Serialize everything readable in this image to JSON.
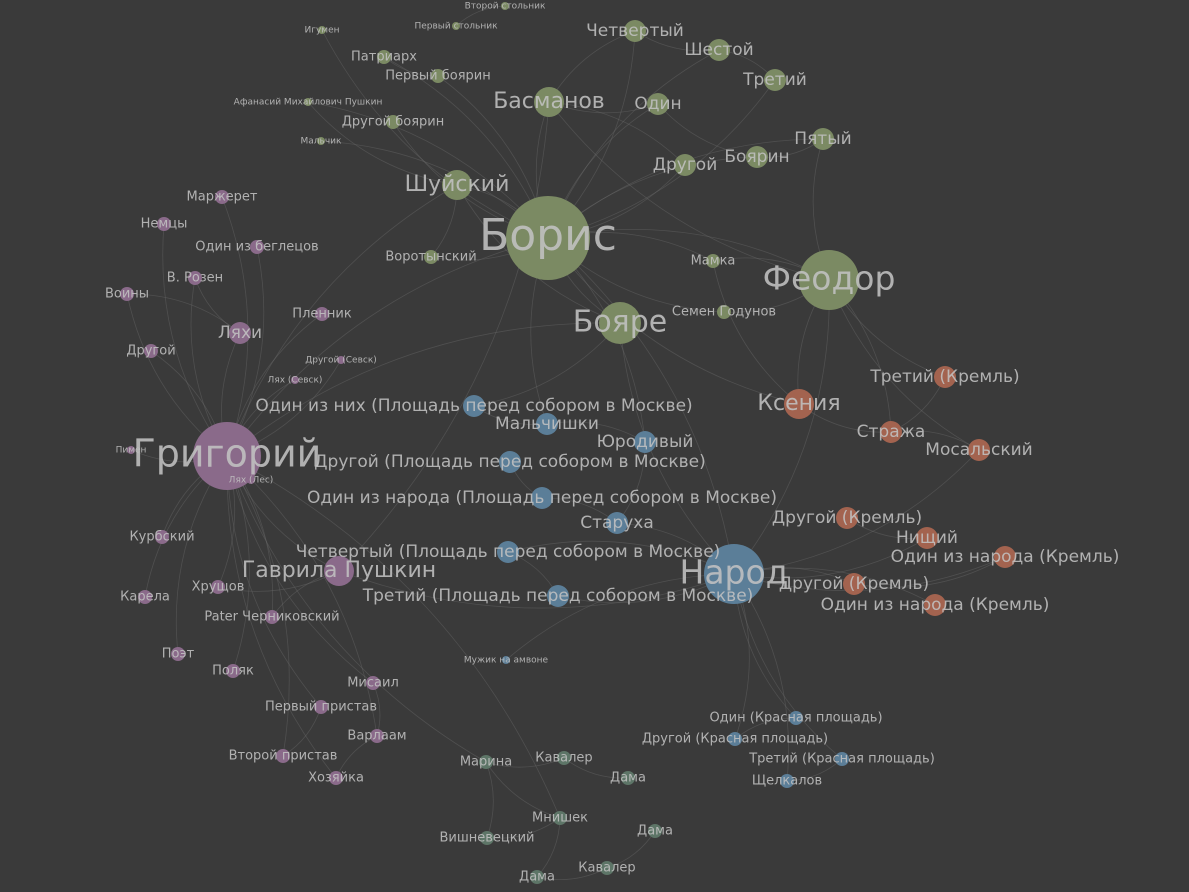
{
  "colors": {
    "background": "#3a3a3a",
    "label": "#c2c2c2",
    "edge": "#6a6a6a",
    "groups": {
      "boris": "#7b8a63",
      "grigory": "#8a6a8a",
      "narod": "#5b7e98",
      "kremlin": "#a3634f",
      "marina": "#5d7567"
    }
  },
  "nodes": [
    {
      "id": "boris",
      "label": "Борис",
      "group": "boris",
      "weight": 10
    },
    {
      "id": "grigory",
      "label": "Григорий",
      "group": "grigory",
      "weight": 9
    },
    {
      "id": "feodor",
      "label": "Феодор",
      "group": "boris",
      "weight": 7
    },
    {
      "id": "narod",
      "label": "Народ",
      "group": "narod",
      "weight": 7
    },
    {
      "id": "boyare",
      "label": "Бояре",
      "group": "boris",
      "weight": 5
    },
    {
      "id": "basmanov",
      "label": "Басманов",
      "group": "boris",
      "weight": 4
    },
    {
      "id": "shuisky",
      "label": "Шуйский",
      "group": "boris",
      "weight": 4
    },
    {
      "id": "ksenia",
      "label": "Ксения",
      "group": "kremlin",
      "weight": 4
    },
    {
      "id": "gavrila",
      "label": "Гаврила Пушкин",
      "group": "grigory",
      "weight": 4
    },
    {
      "id": "lyakhi",
      "label": "Ляхи",
      "group": "grigory",
      "weight": 3
    },
    {
      "id": "chetverty",
      "label": "Четвертый",
      "group": "boris",
      "weight": 3
    },
    {
      "id": "shestoy",
      "label": "Шестой",
      "group": "boris",
      "weight": 3
    },
    {
      "id": "trety",
      "label": "Третий",
      "group": "boris",
      "weight": 3
    },
    {
      "id": "odin",
      "label": "Один",
      "group": "boris",
      "weight": 3
    },
    {
      "id": "pyaty",
      "label": "Пятый",
      "group": "boris",
      "weight": 3
    },
    {
      "id": "boyarin",
      "label": "Боярин",
      "group": "boris",
      "weight": 3
    },
    {
      "id": "drugoy-top",
      "label": "Другой",
      "group": "boris",
      "weight": 3
    },
    {
      "id": "patriarkh",
      "label": "Патриарх",
      "group": "boris",
      "weight": 2
    },
    {
      "id": "perv-boyarin",
      "label": "Первый боярин",
      "group": "boris",
      "weight": 2
    },
    {
      "id": "drug-boyarin",
      "label": "Другой боярин",
      "group": "boris",
      "weight": 2
    },
    {
      "id": "afanasy",
      "label": "Афанасий Михайлович Пушкин",
      "group": "boris",
      "weight": 1
    },
    {
      "id": "malchik",
      "label": "Мальчик",
      "group": "boris",
      "weight": 1
    },
    {
      "id": "igumen",
      "label": "Игумен",
      "group": "boris",
      "weight": 1
    },
    {
      "id": "perv-stolnik",
      "label": "Первый стольник",
      "group": "boris",
      "weight": 1
    },
    {
      "id": "vtor-stolnik",
      "label": "Второй стольник",
      "group": "boris",
      "weight": 1
    },
    {
      "id": "vorotynsky",
      "label": "Воротынский",
      "group": "boris",
      "weight": 2
    },
    {
      "id": "mamka",
      "label": "Мамка",
      "group": "boris",
      "weight": 2
    },
    {
      "id": "semen",
      "label": "Семен Годунов",
      "group": "boris",
      "weight": 2
    },
    {
      "id": "markeret",
      "label": "Маржерет",
      "group": "grigory",
      "weight": 2
    },
    {
      "id": "nemtsy",
      "label": "Немцы",
      "group": "grigory",
      "weight": 2
    },
    {
      "id": "odin-beglets",
      "label": "Один из беглецов",
      "group": "grigory",
      "weight": 2
    },
    {
      "id": "rozen",
      "label": "В. Розен",
      "group": "grigory",
      "weight": 2
    },
    {
      "id": "voiny",
      "label": "Воины",
      "group": "grigory",
      "weight": 2
    },
    {
      "id": "drugoy-left",
      "label": "Другой",
      "group": "grigory",
      "weight": 2
    },
    {
      "id": "plennik",
      "label": "Пленник",
      "group": "grigory",
      "weight": 2
    },
    {
      "id": "drugoy-sevsk",
      "label": "Другой (Севск)",
      "group": "grigory",
      "weight": 1
    },
    {
      "id": "lyakh-sevsk",
      "label": "Лях (Севск)",
      "group": "grigory",
      "weight": 1
    },
    {
      "id": "pimen",
      "label": "Пимен",
      "group": "grigory",
      "weight": 1
    },
    {
      "id": "lyakh-les",
      "label": "Лях (Лес)",
      "group": "grigory",
      "weight": 1
    },
    {
      "id": "kurbsky",
      "label": "Курбский",
      "group": "grigory",
      "weight": 2
    },
    {
      "id": "khrushchov",
      "label": "Хрущов",
      "group": "grigory",
      "weight": 2
    },
    {
      "id": "karela",
      "label": "Карела",
      "group": "grigory",
      "weight": 2
    },
    {
      "id": "pater",
      "label": "Pater Черниковский",
      "group": "grigory",
      "weight": 2
    },
    {
      "id": "poet",
      "label": "Поэт",
      "group": "grigory",
      "weight": 2
    },
    {
      "id": "polyak",
      "label": "Поляк",
      "group": "grigory",
      "weight": 2
    },
    {
      "id": "misail",
      "label": "Мисаил",
      "group": "grigory",
      "weight": 2
    },
    {
      "id": "perv-pristav",
      "label": "Первый пристав",
      "group": "grigory",
      "weight": 2
    },
    {
      "id": "varlaam",
      "label": "Варлаам",
      "group": "grigory",
      "weight": 2
    },
    {
      "id": "vtor-pristav",
      "label": "Второй пристав",
      "group": "grigory",
      "weight": 2
    },
    {
      "id": "khozyaika",
      "label": "Хозяйка",
      "group": "grigory",
      "weight": 2
    },
    {
      "id": "odin-nikh",
      "label": "Один из них (Площадь перед собором в Москве)",
      "group": "narod",
      "weight": 3
    },
    {
      "id": "malchishki",
      "label": "Мальчишки",
      "group": "narod",
      "weight": 3
    },
    {
      "id": "yurodivy",
      "label": "Юродивый",
      "group": "narod",
      "weight": 3
    },
    {
      "id": "drugoy-ploshchad",
      "label": "Другой (Площадь перед собором в Москве)",
      "group": "narod",
      "weight": 3
    },
    {
      "id": "odin-naroda-ploshchad",
      "label": "Один из народа (Площадь перед собором в Москве)",
      "group": "narod",
      "weight": 3
    },
    {
      "id": "starukha",
      "label": "Старуха",
      "group": "narod",
      "weight": 3
    },
    {
      "id": "chetverty-ploshchad",
      "label": "Четвертый (Площадь перед собором в Москве)",
      "group": "narod",
      "weight": 3
    },
    {
      "id": "trety-ploshchad",
      "label": "Третий (Площадь перед собором в Москве)",
      "group": "narod",
      "weight": 3
    },
    {
      "id": "muzhik",
      "label": "Мужик на амвоне",
      "group": "narod",
      "weight": 1
    },
    {
      "id": "odin-krasnaya",
      "label": "Один (Красная площадь)",
      "group": "narod",
      "weight": 2
    },
    {
      "id": "drugoy-krasnaya",
      "label": "Другой (Красная площадь)",
      "group": "narod",
      "weight": 2
    },
    {
      "id": "trety-krasnaya",
      "label": "Третий (Красная площадь)",
      "group": "narod",
      "weight": 2
    },
    {
      "id": "shchelkalov",
      "label": "Щелкалов",
      "group": "narod",
      "weight": 2
    },
    {
      "id": "trety-kreml",
      "label": "Третий (Кремль)",
      "group": "kremlin",
      "weight": 3
    },
    {
      "id": "strazha",
      "label": "Стража",
      "group": "kremlin",
      "weight": 3
    },
    {
      "id": "mosalsky",
      "label": "Мосальский",
      "group": "kremlin",
      "weight": 3
    },
    {
      "id": "drugoy-kreml-1",
      "label": "Другой (Кремль)",
      "group": "kremlin",
      "weight": 3
    },
    {
      "id": "nishchy",
      "label": "Нищий",
      "group": "kremlin",
      "weight": 3
    },
    {
      "id": "odin-naroda-kreml-1",
      "label": "Один из народа (Кремль)",
      "group": "kremlin",
      "weight": 3
    },
    {
      "id": "drugoy-kreml-2",
      "label": "Другой (Кремль)",
      "group": "kremlin",
      "weight": 3
    },
    {
      "id": "odin-naroda-kreml-2",
      "label": "Один из народа (Кремль)",
      "group": "kremlin",
      "weight": 3
    },
    {
      "id": "marina",
      "label": "Марина",
      "group": "marina",
      "weight": 2
    },
    {
      "id": "kavaler-1",
      "label": "Кавалер",
      "group": "marina",
      "weight": 2
    },
    {
      "id": "dama-1",
      "label": "Дама",
      "group": "marina",
      "weight": 2
    },
    {
      "id": "mnishek",
      "label": "Мнишек",
      "group": "marina",
      "weight": 2
    },
    {
      "id": "dama-2",
      "label": "Дама",
      "group": "marina",
      "weight": 2
    },
    {
      "id": "vishnevetsky",
      "label": "Вишневецкий",
      "group": "marina",
      "weight": 2
    },
    {
      "id": "dama-3",
      "label": "Дама",
      "group": "marina",
      "weight": 2
    },
    {
      "id": "kavaler-2",
      "label": "Кавалер",
      "group": "marina",
      "weight": 2
    }
  ],
  "edges": [
    [
      "boris",
      "shuisky"
    ],
    [
      "boris",
      "basmanov"
    ],
    [
      "boris",
      "boyare"
    ],
    [
      "boris",
      "feodor"
    ],
    [
      "boris",
      "patriarkh"
    ],
    [
      "boris",
      "vorotynsky"
    ],
    [
      "boris",
      "semen"
    ],
    [
      "boris",
      "mamka"
    ],
    [
      "boris",
      "ksenia"
    ],
    [
      "boris",
      "narod"
    ],
    [
      "boris",
      "grigory"
    ],
    [
      "boris",
      "odin"
    ],
    [
      "boris",
      "drugoy-top"
    ],
    [
      "boris",
      "boyarin"
    ],
    [
      "boris",
      "chetverty"
    ],
    [
      "boris",
      "shestoy"
    ],
    [
      "boris",
      "trety"
    ],
    [
      "boris",
      "pyaty"
    ],
    [
      "boris",
      "perv-boyarin"
    ],
    [
      "boris",
      "drug-boyarin"
    ],
    [
      "boris",
      "afanasy"
    ],
    [
      "boris",
      "igumen"
    ],
    [
      "boris",
      "malchik"
    ],
    [
      "boris",
      "yurodivy"
    ],
    [
      "boris",
      "malchishki"
    ],
    [
      "shuisky",
      "vorotynsky"
    ],
    [
      "shuisky",
      "grigory"
    ],
    [
      "shuisky",
      "afanasy"
    ],
    [
      "basmanov",
      "feodor"
    ],
    [
      "basmanov",
      "chetverty"
    ],
    [
      "basmanov",
      "odin"
    ],
    [
      "basmanov",
      "drugoy-top"
    ],
    [
      "feodor",
      "ksenia"
    ],
    [
      "feodor",
      "semen"
    ],
    [
      "feodor",
      "mamka"
    ],
    [
      "feodor",
      "narod"
    ],
    [
      "feodor",
      "trety-kreml"
    ],
    [
      "feodor",
      "strazha"
    ],
    [
      "feodor",
      "mosalsky"
    ],
    [
      "feodor",
      "pyaty"
    ],
    [
      "ksenia",
      "strazha"
    ],
    [
      "ksenia",
      "mamka"
    ],
    [
      "narod",
      "mosalsky"
    ],
    [
      "narod",
      "drugoy-kreml-2"
    ],
    [
      "narod",
      "odin-naroda-kreml-1"
    ],
    [
      "narod",
      "odin-naroda-kreml-2"
    ],
    [
      "narod",
      "nishchy"
    ],
    [
      "narod",
      "gavrila"
    ],
    [
      "narod",
      "odin-krasnaya"
    ],
    [
      "narod",
      "drugoy-krasnaya"
    ],
    [
      "narod",
      "trety-krasnaya"
    ],
    [
      "narod",
      "shchelkalov"
    ],
    [
      "narod",
      "starukha"
    ],
    [
      "narod",
      "trety-ploshchad"
    ],
    [
      "narod",
      "chetverty-ploshchad"
    ],
    [
      "narod",
      "boyare"
    ],
    [
      "narod",
      "muzhik"
    ],
    [
      "boyare",
      "shuisky"
    ],
    [
      "boyare",
      "grigory"
    ],
    [
      "boyare",
      "odin-nikh"
    ],
    [
      "grigory",
      "gavrila"
    ],
    [
      "grigory",
      "lyakhi"
    ],
    [
      "grigory",
      "kurbsky"
    ],
    [
      "grigory",
      "khrushchov"
    ],
    [
      "grigory",
      "karela"
    ],
    [
      "grigory",
      "pater"
    ],
    [
      "grigory",
      "poet"
    ],
    [
      "grigory",
      "polyak"
    ],
    [
      "grigory",
      "misail"
    ],
    [
      "grigory",
      "varlaam"
    ],
    [
      "grigory",
      "perv-pristav"
    ],
    [
      "grigory",
      "vtor-pristav"
    ],
    [
      "grigory",
      "khozyaika"
    ],
    [
      "grigory",
      "pimen"
    ],
    [
      "grigory",
      "lyakh-les"
    ],
    [
      "grigory",
      "rozen"
    ],
    [
      "grigory",
      "markeret"
    ],
    [
      "grigory",
      "nemtsy"
    ],
    [
      "grigory",
      "odin-beglets"
    ],
    [
      "grigory",
      "voiny"
    ],
    [
      "grigory",
      "drugoy-left"
    ],
    [
      "grigory",
      "plennik"
    ],
    [
      "grigory",
      "drugoy-sevsk"
    ],
    [
      "grigory",
      "lyakh-sevsk"
    ],
    [
      "grigory",
      "marina"
    ],
    [
      "grigory",
      "mnishek"
    ],
    [
      "gavrila",
      "pater"
    ],
    [
      "gavrila",
      "khrushchov"
    ],
    [
      "gavrila",
      "basmanov"
    ],
    [
      "lyakhi",
      "rozen"
    ],
    [
      "lyakhi",
      "voiny"
    ],
    [
      "misail",
      "varlaam"
    ],
    [
      "varlaam",
      "khozyaika"
    ],
    [
      "perv-pristav",
      "vtor-pristav"
    ],
    [
      "marina",
      "mnishek"
    ],
    [
      "marina",
      "vishnevetsky"
    ],
    [
      "marina",
      "kavaler-1"
    ],
    [
      "mnishek",
      "vishnevetsky"
    ],
    [
      "kavaler-1",
      "dama-1"
    ],
    [
      "dama-2",
      "kavaler-2"
    ],
    [
      "dama-3",
      "kavaler-2"
    ],
    [
      "mnishek",
      "dama-3"
    ],
    [
      "odin-nikh",
      "malchishki"
    ],
    [
      "malchishki",
      "yurodivy"
    ],
    [
      "drugoy-ploshchad",
      "odin-naroda-ploshchad"
    ],
    [
      "odin-naroda-ploshchad",
      "starukha"
    ],
    [
      "starukha",
      "yurodivy"
    ],
    [
      "chetverty-ploshchad",
      "trety-ploshchad"
    ],
    [
      "drugoy-kreml-1",
      "nishchy"
    ],
    [
      "odin-naroda-kreml-1",
      "drugoy-kreml-2"
    ],
    [
      "mosalsky",
      "strazha"
    ],
    [
      "trety-kreml",
      "strazha"
    ],
    [
      "chetverty",
      "shestoy"
    ],
    [
      "shestoy",
      "trety"
    ],
    [
      "odin",
      "boyarin"
    ],
    [
      "pyaty",
      "boyarin"
    ],
    [
      "patriarkh",
      "perv-boyarin"
    ],
    [
      "perv-stolnik",
      "vtor-stolnik"
    ],
    [
      "odin-krasnaya",
      "drugoy-krasnaya"
    ],
    [
      "trety-krasnaya",
      "shchelkalov"
    ]
  ]
}
